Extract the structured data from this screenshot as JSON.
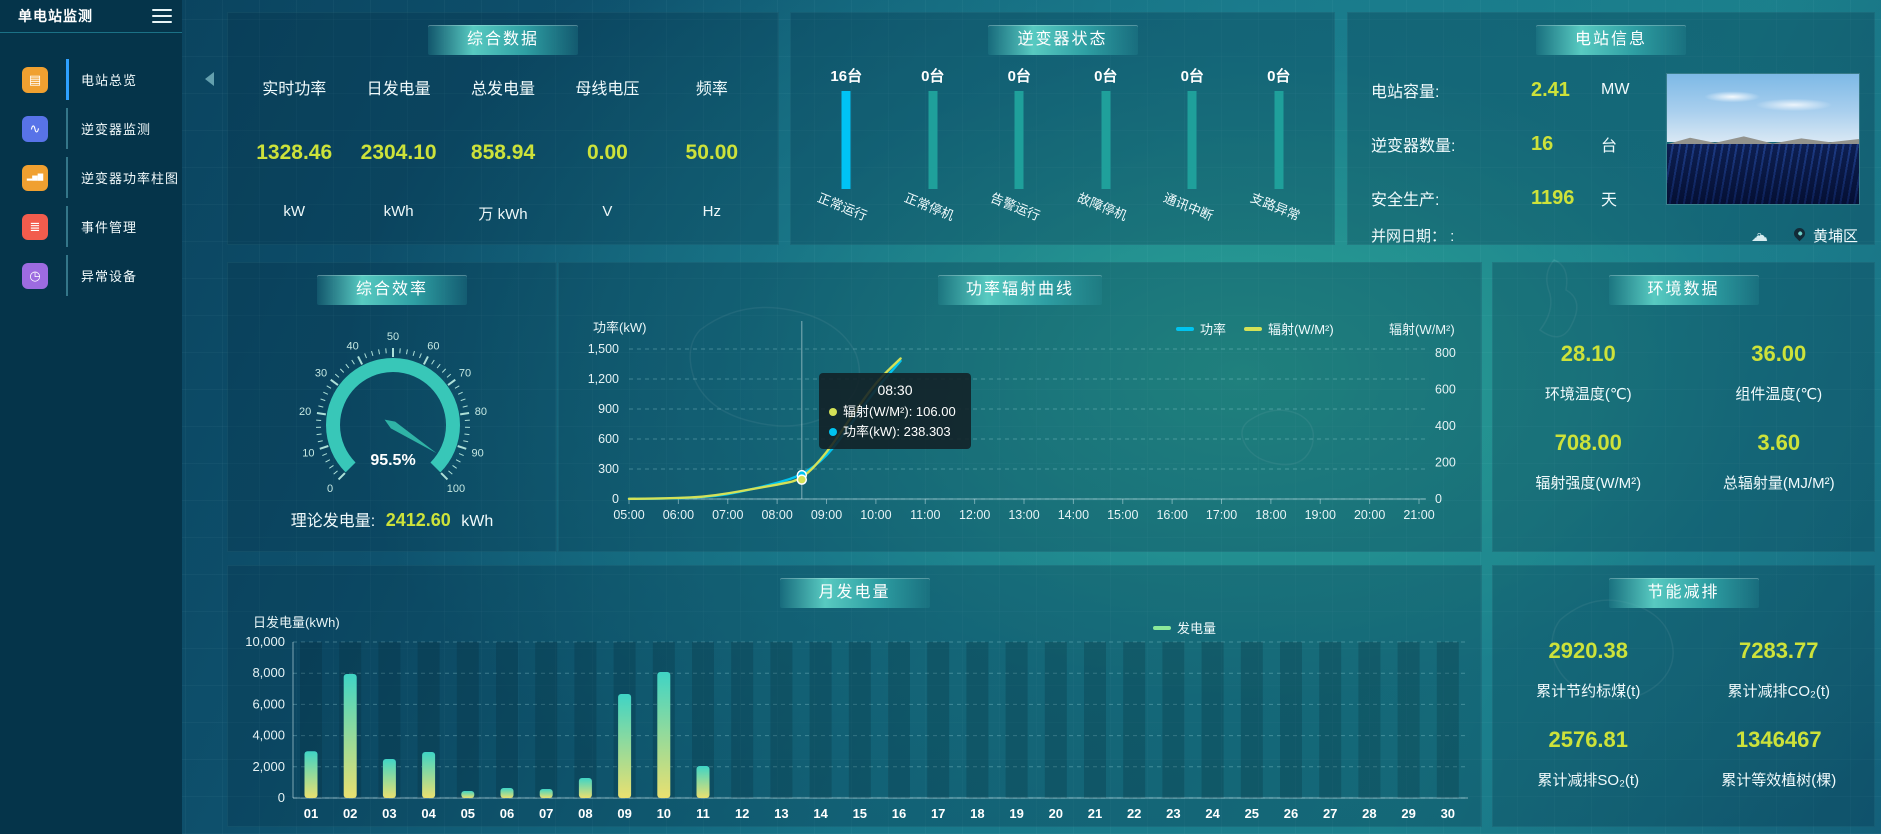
{
  "app": {
    "title": "单电站监测"
  },
  "colors": {
    "value_yellow": "#cde23a",
    "power_cyan": "#00c4f0",
    "radiation_yellow": "#d4e157",
    "inverter_active_bar": "#00c3f5",
    "inverter_idle_bar": "#1fa09b",
    "generation_green": "#8ce99a",
    "gauge_teal": "#38c7b8",
    "active_menu_indicator": "#2ea0ff"
  },
  "sidebar": {
    "items": [
      {
        "label": "电站总览",
        "icon": "overview-icon",
        "glyph": "▤",
        "color": "#f0a030",
        "active": true
      },
      {
        "label": "逆变器监测",
        "icon": "inverter-monitor-icon",
        "glyph": "∿",
        "color": "#5873e8",
        "active": false
      },
      {
        "label": "逆变器功率柱图",
        "icon": "inverter-power-bars-icon",
        "glyph": "▂▅▇",
        "color": "#f0a030",
        "active": false
      },
      {
        "label": "事件管理",
        "icon": "event-management-icon",
        "glyph": "≣",
        "color": "#f25c4d",
        "active": false
      },
      {
        "label": "异常设备",
        "icon": "abnormal-device-icon",
        "glyph": "◷",
        "color": "#9d6be0",
        "active": false
      }
    ]
  },
  "panels": {
    "summary": {
      "title": "综合数据",
      "metrics": [
        {
          "label": "实时功率",
          "value": "1328.46",
          "unit": "kW"
        },
        {
          "label": "日发电量",
          "value": "2304.10",
          "unit": "kWh"
        },
        {
          "label": "总发电量",
          "value": "858.94",
          "unit": "万 kWh"
        },
        {
          "label": "母线电压",
          "value": "0.00",
          "unit": "V"
        },
        {
          "label": "频率",
          "value": "50.00",
          "unit": "Hz"
        }
      ]
    },
    "inverter_status": {
      "title": "逆变器状态",
      "items": [
        {
          "count": "16台",
          "label": "正常运行"
        },
        {
          "count": "0台",
          "label": "正常停机"
        },
        {
          "count": "0台",
          "label": "告警运行"
        },
        {
          "count": "0台",
          "label": "故障停机"
        },
        {
          "count": "0台",
          "label": "通讯中断"
        },
        {
          "count": "0台",
          "label": "支路异常"
        }
      ]
    },
    "station_info": {
      "title": "电站信息",
      "rows": [
        {
          "label": "电站容量:",
          "value": "2.41",
          "unit": "MW"
        },
        {
          "label": "逆变器数量:",
          "value": "16",
          "unit": "台"
        },
        {
          "label": "安全生产:",
          "value": "1196",
          "unit": "天"
        }
      ],
      "grid_date_label": "并网日期：  :",
      "location": "黄埔区"
    },
    "efficiency": {
      "title": "综合效率",
      "theory_label": "理论发电量:",
      "theory_value": "2412.60",
      "theory_unit": "kWh"
    },
    "power_curve": {
      "title": "功率辐射曲线"
    },
    "environment": {
      "title": "环境数据",
      "metrics": [
        {
          "value": "28.10",
          "label": "环境温度(℃)"
        },
        {
          "value": "36.00",
          "label": "组件温度(℃)"
        },
        {
          "value": "708.00",
          "label": "辐射强度(W/M²)"
        },
        {
          "value": "3.60",
          "label": "总辐射量(MJ/M²)"
        }
      ]
    },
    "monthly": {
      "title": "月发电量"
    },
    "savings": {
      "title": "节能减排",
      "metrics": [
        {
          "value": "2920.38",
          "label": "累计节约标煤(t)"
        },
        {
          "value": "7283.77",
          "label": "累计减排CO₂(t)"
        },
        {
          "value": "2576.81",
          "label": "累计减排SO₂(t)"
        },
        {
          "value": "1346467",
          "label": "累计等效植树(棵)"
        }
      ]
    }
  },
  "chart_data": [
    {
      "id": "power_radiation",
      "type": "line",
      "title": "功率辐射曲线",
      "x": [
        "05:00",
        "05:30",
        "06:00",
        "06:30",
        "07:00",
        "07:30",
        "08:00",
        "08:30",
        "09:00",
        "09:30",
        "10:00",
        "10:30"
      ],
      "series": [
        {
          "name": "功率",
          "axis": "left",
          "color": "#00c4f0",
          "values": [
            2,
            3,
            8,
            18,
            45,
            100,
            160,
            238.3,
            420,
            750,
            1100,
            1380
          ]
        },
        {
          "name": "辐射(W/M²)",
          "axis": "right",
          "color": "#d4e157",
          "values": [
            1,
            2,
            5,
            12,
            30,
            55,
            78,
            106,
            250,
            450,
            640,
            770
          ]
        }
      ],
      "xaxis_ticks": [
        "05:00",
        "06:00",
        "07:00",
        "08:00",
        "09:00",
        "10:00",
        "11:00",
        "12:00",
        "13:00",
        "14:00",
        "15:00",
        "16:00",
        "17:00",
        "18:00",
        "19:00",
        "20:00",
        "21:00"
      ],
      "left_axis": {
        "name": "功率(kW)",
        "min": 0,
        "max": 1500,
        "ticks": [
          "1,500",
          "1,200",
          "900",
          "600",
          "300",
          "0"
        ]
      },
      "right_axis": {
        "name": "辐射(W/M²)",
        "min": 0,
        "max": 800,
        "ticks": [
          "800",
          "600",
          "400",
          "200",
          "0"
        ]
      },
      "legend": [
        "功率",
        "辐射(W/M²)"
      ],
      "grid": "horizontal-dashed",
      "hover": {
        "time": "08:30",
        "index": 7,
        "items": [
          {
            "text": "辐射(W/M²): 106.00",
            "color": "#d4e157"
          },
          {
            "text": "功率(kW): 238.303",
            "color": "#00c4f0"
          }
        ]
      }
    },
    {
      "id": "monthly_generation",
      "type": "bar",
      "title": "月发电量",
      "ylabel": "日发电量(kWh)",
      "legend": "发电量",
      "legend_color": "#8ce99a",
      "bar_gradient_top": "#3fd4c5",
      "bar_gradient_bottom": "#e9e070",
      "categories": [
        "01",
        "02",
        "03",
        "04",
        "05",
        "06",
        "07",
        "08",
        "09",
        "10",
        "11",
        "12",
        "13",
        "14",
        "15",
        "16",
        "17",
        "18",
        "19",
        "20",
        "21",
        "22",
        "23",
        "24",
        "25",
        "26",
        "27",
        "28",
        "29",
        "30"
      ],
      "values": [
        3000,
        7950,
        2500,
        2950,
        450,
        640,
        580,
        1280,
        6670,
        8080,
        2050,
        0,
        0,
        0,
        0,
        0,
        0,
        0,
        0,
        0,
        0,
        0,
        0,
        0,
        0,
        0,
        0,
        0,
        0,
        0
      ],
      "yticks": [
        "10,000",
        "8,000",
        "6,000",
        "4,000",
        "2,000",
        "0"
      ],
      "ylim": [
        0,
        10000
      ]
    },
    {
      "id": "efficiency_gauge",
      "type": "gauge",
      "min": 0,
      "max": 100,
      "value": 95.5,
      "display": "95.5%",
      "color": "#38c7b8",
      "tick_labels": [
        "0",
        "10",
        "20",
        "30",
        "40",
        "50",
        "60",
        "70",
        "80",
        "90",
        "100"
      ]
    },
    {
      "id": "inverter_status_bars",
      "type": "bar",
      "categories": [
        "正常运行",
        "正常停机",
        "告警运行",
        "故障停机",
        "通讯中断",
        "支路异常"
      ],
      "values": [
        16,
        0,
        0,
        0,
        0,
        0
      ],
      "unit": "台",
      "bar_colors": [
        "#00c3f5",
        "#1fa09b",
        "#1fa09b",
        "#1fa09b",
        "#1fa09b",
        "#1fa09b"
      ]
    }
  ]
}
